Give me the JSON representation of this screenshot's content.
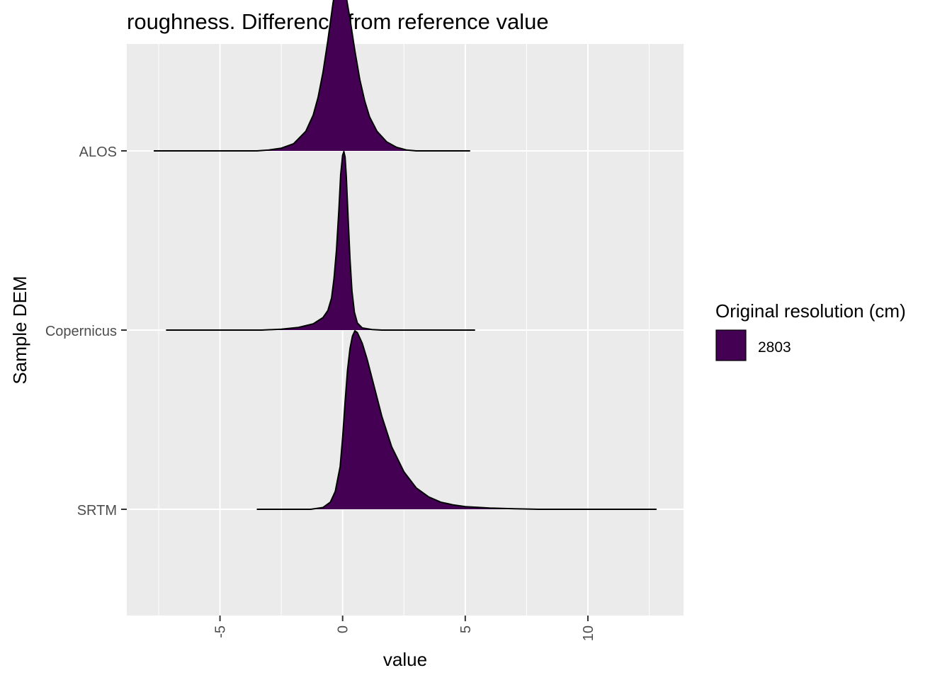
{
  "chart_data": {
    "type": "ridgeline",
    "title": "roughness. Difference from reference value",
    "xlabel": "value",
    "ylabel": "Sample DEM",
    "xlim": [
      -8.8,
      13.9
    ],
    "x_ticks": [
      -5,
      0,
      5,
      10
    ],
    "x_tick_labels": [
      "-5",
      "0",
      "5",
      "10"
    ],
    "x_minor_ticks": [
      -7.5,
      -2.5,
      2.5,
      7.5,
      12.5
    ],
    "categories": [
      "ALOS",
      "Copernicus",
      "SRTM"
    ],
    "grid": true,
    "fill_color": "#440154",
    "panel_background": "#ebebeb",
    "grid_color": "#ffffff",
    "legend": {
      "title": "Original resolution (cm)",
      "position": "right",
      "entries": [
        {
          "label": "2803",
          "color": "#440154"
        }
      ]
    },
    "series": [
      {
        "category": "ALOS",
        "range": [
          -7.7,
          5.2
        ],
        "density": [
          [
            -7.7,
            0
          ],
          [
            -3.5,
            0
          ],
          [
            -3.0,
            0.005
          ],
          [
            -2.5,
            0.015
          ],
          [
            -2.0,
            0.04
          ],
          [
            -1.5,
            0.11
          ],
          [
            -1.2,
            0.2
          ],
          [
            -1.0,
            0.3
          ],
          [
            -0.8,
            0.44
          ],
          [
            -0.6,
            0.62
          ],
          [
            -0.4,
            0.82
          ],
          [
            -0.25,
            0.95
          ],
          [
            -0.15,
            1.0
          ],
          [
            -0.05,
            0.98
          ],
          [
            0.1,
            0.9
          ],
          [
            0.3,
            0.74
          ],
          [
            0.5,
            0.56
          ],
          [
            0.7,
            0.4
          ],
          [
            0.9,
            0.28
          ],
          [
            1.1,
            0.19
          ],
          [
            1.4,
            0.11
          ],
          [
            1.8,
            0.05
          ],
          [
            2.2,
            0.02
          ],
          [
            2.6,
            0.005
          ],
          [
            3.0,
            0
          ],
          [
            5.2,
            0
          ]
        ]
      },
      {
        "category": "Copernicus",
        "range": [
          -7.2,
          5.4
        ],
        "density": [
          [
            -7.2,
            0
          ],
          [
            -3.3,
            0
          ],
          [
            -2.5,
            0.005
          ],
          [
            -1.8,
            0.015
          ],
          [
            -1.2,
            0.035
          ],
          [
            -0.8,
            0.07
          ],
          [
            -0.6,
            0.11
          ],
          [
            -0.45,
            0.18
          ],
          [
            -0.35,
            0.29
          ],
          [
            -0.25,
            0.45
          ],
          [
            -0.15,
            0.68
          ],
          [
            -0.08,
            0.87
          ],
          [
            0.0,
            0.98
          ],
          [
            0.05,
            1.0
          ],
          [
            0.1,
            0.97
          ],
          [
            0.15,
            0.86
          ],
          [
            0.22,
            0.64
          ],
          [
            0.3,
            0.4
          ],
          [
            0.38,
            0.22
          ],
          [
            0.48,
            0.1
          ],
          [
            0.6,
            0.04
          ],
          [
            0.8,
            0.012
          ],
          [
            1.2,
            0.003
          ],
          [
            1.6,
            0
          ],
          [
            5.4,
            0
          ]
        ]
      },
      {
        "category": "SRTM",
        "range": [
          -3.5,
          12.8
        ],
        "density": [
          [
            -3.5,
            0
          ],
          [
            -1.3,
            0
          ],
          [
            -0.8,
            0.01
          ],
          [
            -0.5,
            0.04
          ],
          [
            -0.3,
            0.1
          ],
          [
            -0.1,
            0.24
          ],
          [
            0.0,
            0.4
          ],
          [
            0.1,
            0.6
          ],
          [
            0.2,
            0.78
          ],
          [
            0.3,
            0.9
          ],
          [
            0.4,
            0.97
          ],
          [
            0.5,
            1.0
          ],
          [
            0.6,
            0.99
          ],
          [
            0.8,
            0.93
          ],
          [
            1.0,
            0.84
          ],
          [
            1.3,
            0.68
          ],
          [
            1.6,
            0.52
          ],
          [
            2.0,
            0.35
          ],
          [
            2.5,
            0.21
          ],
          [
            3.0,
            0.12
          ],
          [
            3.5,
            0.07
          ],
          [
            4.0,
            0.04
          ],
          [
            4.5,
            0.025
          ],
          [
            5.0,
            0.015
          ],
          [
            6.0,
            0.007
          ],
          [
            7.0,
            0.003
          ],
          [
            8.0,
            0
          ],
          [
            12.8,
            0
          ]
        ]
      }
    ]
  }
}
